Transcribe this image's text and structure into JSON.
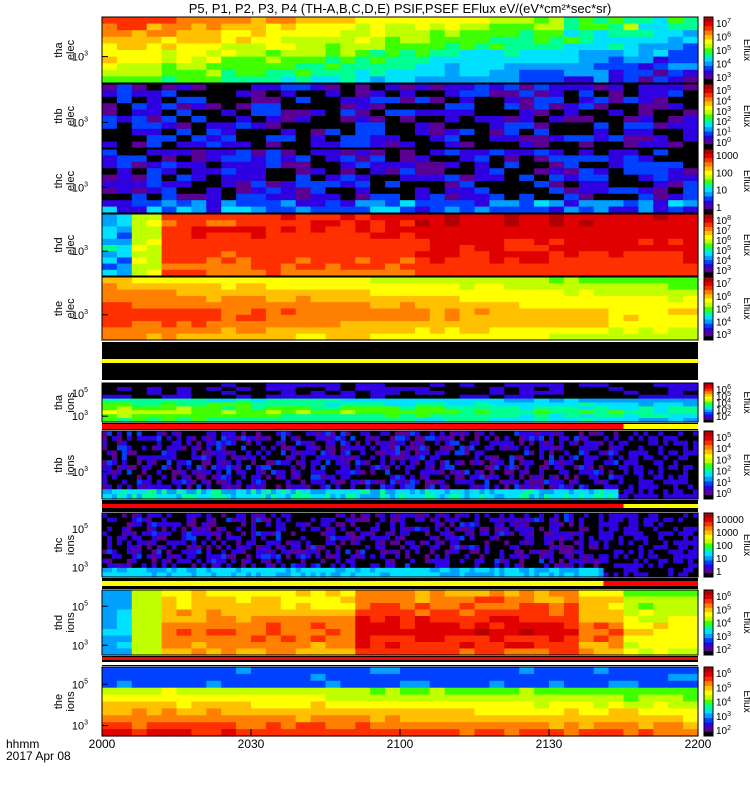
{
  "title": "P5, P1, P2, P3, P4 (TH-A,B,C,D,E) PSIF,PSEF EFlux eV/(eV*cm²*sec*sr)",
  "x_axis": {
    "corner_label": "hhmm",
    "date_label": "2017 Apr 08",
    "ticks": [
      "2000",
      "2030",
      "2100",
      "2130",
      "2200"
    ]
  },
  "colorbar_label": "Eflux",
  "chart_data": {
    "type": "heatmap",
    "x_range_minutes": [
      0,
      120
    ],
    "panels": [
      {
        "id": "tha-elec",
        "probe": "tha",
        "species": "elec",
        "y_ticks": [
          {
            "label": "10",
            "exp": "3"
          }
        ],
        "colorbar_ticks": [
          {
            "b": "10",
            "e": "7"
          },
          {
            "b": "10",
            "e": "6"
          },
          {
            "b": "10",
            "e": "5"
          },
          {
            "b": "10",
            "e": "4"
          },
          {
            "b": "10",
            "e": "3"
          }
        ]
      },
      {
        "id": "thb-elec",
        "probe": "thb",
        "species": "elec",
        "y_ticks": [
          {
            "label": "10",
            "exp": "3"
          }
        ],
        "colorbar_ticks": [
          {
            "b": "10",
            "e": "5"
          },
          {
            "b": "10",
            "e": "4"
          },
          {
            "b": "10",
            "e": "3"
          },
          {
            "b": "10",
            "e": "2"
          },
          {
            "b": "10",
            "e": "1"
          },
          {
            "b": "10",
            "e": "0"
          }
        ]
      },
      {
        "id": "thc-elec",
        "probe": "thc",
        "species": "elec",
        "y_ticks": [
          {
            "label": "10",
            "exp": "3"
          }
        ],
        "colorbar_ticks": [
          {
            "b": "1000",
            "e": ""
          },
          {
            "b": "100",
            "e": ""
          },
          {
            "b": "10",
            "e": ""
          },
          {
            "b": "1",
            "e": ""
          }
        ]
      },
      {
        "id": "thd-elec",
        "probe": "thd",
        "species": "elec",
        "y_ticks": [
          {
            "label": "10",
            "exp": "3"
          }
        ],
        "colorbar_ticks": [
          {
            "b": "10",
            "e": "8"
          },
          {
            "b": "10",
            "e": "7"
          },
          {
            "b": "10",
            "e": "6"
          },
          {
            "b": "10",
            "e": "5"
          },
          {
            "b": "10",
            "e": "4"
          },
          {
            "b": "10",
            "e": "3"
          }
        ]
      },
      {
        "id": "the-elec",
        "probe": "the",
        "species": "elec",
        "y_ticks": [
          {
            "label": "10",
            "exp": "3"
          }
        ],
        "colorbar_ticks": [
          {
            "b": "10",
            "e": "7"
          },
          {
            "b": "10",
            "e": "6"
          },
          {
            "b": "10",
            "e": "5"
          },
          {
            "b": "10",
            "e": "4"
          },
          {
            "b": "10",
            "e": "3"
          }
        ]
      },
      {
        "id": "tha-ions",
        "probe": "tha",
        "species": "ions",
        "y_ticks": [
          {
            "label": "10",
            "exp": "5"
          },
          {
            "label": "10",
            "exp": "3"
          }
        ],
        "colorbar_ticks": [
          {
            "b": "10",
            "e": "6"
          },
          {
            "b": "10",
            "e": "5"
          },
          {
            "b": "10",
            "e": "4"
          },
          {
            "b": "10",
            "e": "3"
          },
          {
            "b": "10",
            "e": "2"
          }
        ]
      },
      {
        "id": "thb-ions",
        "probe": "thb",
        "species": "ions",
        "y_ticks": [
          {
            "label": "10",
            "exp": "3"
          }
        ],
        "colorbar_ticks": [
          {
            "b": "10",
            "e": "5"
          },
          {
            "b": "10",
            "e": "4"
          },
          {
            "b": "10",
            "e": "3"
          },
          {
            "b": "10",
            "e": "2"
          },
          {
            "b": "10",
            "e": "1"
          },
          {
            "b": "10",
            "e": "0"
          }
        ]
      },
      {
        "id": "thc-ions",
        "probe": "thc",
        "species": "ions",
        "y_ticks": [
          {
            "label": "10",
            "exp": "5"
          },
          {
            "label": "10",
            "exp": "3"
          }
        ],
        "colorbar_ticks": [
          {
            "b": "10000",
            "e": ""
          },
          {
            "b": "1000",
            "e": ""
          },
          {
            "b": "100",
            "e": ""
          },
          {
            "b": "10",
            "e": ""
          },
          {
            "b": "1",
            "e": ""
          }
        ]
      },
      {
        "id": "thd-ions",
        "probe": "thd",
        "species": "ions",
        "y_ticks": [
          {
            "label": "10",
            "exp": "5"
          },
          {
            "label": "10",
            "exp": "3"
          }
        ],
        "colorbar_ticks": [
          {
            "b": "10",
            "e": "6"
          },
          {
            "b": "10",
            "e": "5"
          },
          {
            "b": "10",
            "e": "4"
          },
          {
            "b": "10",
            "e": "3"
          },
          {
            "b": "10",
            "e": "2"
          }
        ]
      },
      {
        "id": "the-ions",
        "probe": "the",
        "species": "ions",
        "y_ticks": [
          {
            "label": "10",
            "exp": "5"
          },
          {
            "label": "10",
            "exp": "3"
          }
        ],
        "colorbar_ticks": [
          {
            "b": "10",
            "e": "6"
          },
          {
            "b": "10",
            "e": "5"
          },
          {
            "b": "10",
            "e": "4"
          },
          {
            "b": "10",
            "e": "3"
          },
          {
            "b": "10",
            "e": "2"
          }
        ]
      }
    ],
    "flag_bars": [
      {
        "after": "the-elec",
        "segments": [
          {
            "from": 0,
            "to": 120,
            "color": "#ffff00"
          }
        ]
      },
      {
        "after": "tha-ions",
        "segments": [
          {
            "from": 0,
            "to": 105,
            "color": "#ff0000"
          },
          {
            "from": 105,
            "to": 120,
            "color": "#ffff00"
          }
        ]
      },
      {
        "after": "thb-ions",
        "segments": [
          {
            "from": 0,
            "to": 105,
            "color": "#ff0000"
          },
          {
            "from": 105,
            "to": 120,
            "color": "#ffff00"
          }
        ]
      },
      {
        "after": "thc-ions",
        "segments": [
          {
            "from": 0,
            "to": 101,
            "color": "#ffff00"
          },
          {
            "from": 101,
            "to": 120,
            "color": "#ff0000"
          }
        ]
      },
      {
        "after": "thd-ions",
        "segments": [
          {
            "from": 0,
            "to": 120,
            "color": "#ff0000"
          }
        ]
      },
      {
        "after": "thd-ions-2",
        "segments": [
          {
            "from": 0,
            "to": 120,
            "color": "#ffffff"
          }
        ]
      }
    ],
    "colormap": [
      "#000000",
      "#5a0094",
      "#2f00e0",
      "#0040ff",
      "#00a0ff",
      "#00e0ff",
      "#00ff90",
      "#40ff00",
      "#c0ff00",
      "#ffff00",
      "#ffc000",
      "#ff8000",
      "#ff3000",
      "#e00000",
      "#b00000"
    ]
  }
}
